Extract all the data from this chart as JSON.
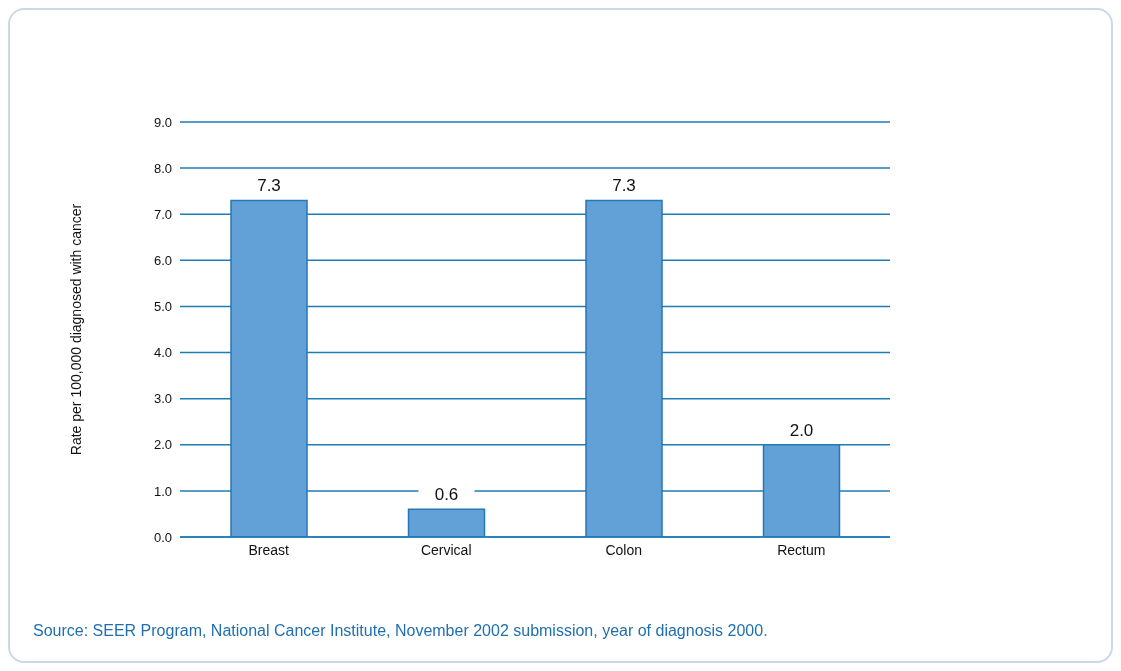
{
  "chart_data": {
    "type": "bar",
    "ylabel": "Rate per 100,000 diagnosed with cancer",
    "categories": [
      "Breast",
      "Cervical",
      "Colon",
      "Rectum"
    ],
    "values": [
      7.3,
      0.6,
      7.3,
      2.0
    ],
    "value_labels": [
      "7.3",
      "0.6",
      "7.3",
      "2.0"
    ],
    "color": "#62a1d7",
    "ylim": [
      0,
      9
    ],
    "yticks": [
      {
        "value": 0,
        "label": "0.0"
      },
      {
        "value": 1,
        "label": "1.0"
      },
      {
        "value": 2,
        "label": "2.0"
      },
      {
        "value": 3,
        "label": "3.0"
      },
      {
        "value": 4,
        "label": "4.0"
      },
      {
        "value": 5,
        "label": "5.0"
      },
      {
        "value": 6,
        "label": "6.0"
      },
      {
        "value": 7,
        "label": "7.0"
      },
      {
        "value": 8,
        "label": "8.0"
      },
      {
        "value": 9,
        "label": "9.0"
      }
    ],
    "grid": "y",
    "annotations": [
      "Source: SEER Program, National Cancer Institute, November 2002 submission, year of diagnosis 2000."
    ]
  }
}
